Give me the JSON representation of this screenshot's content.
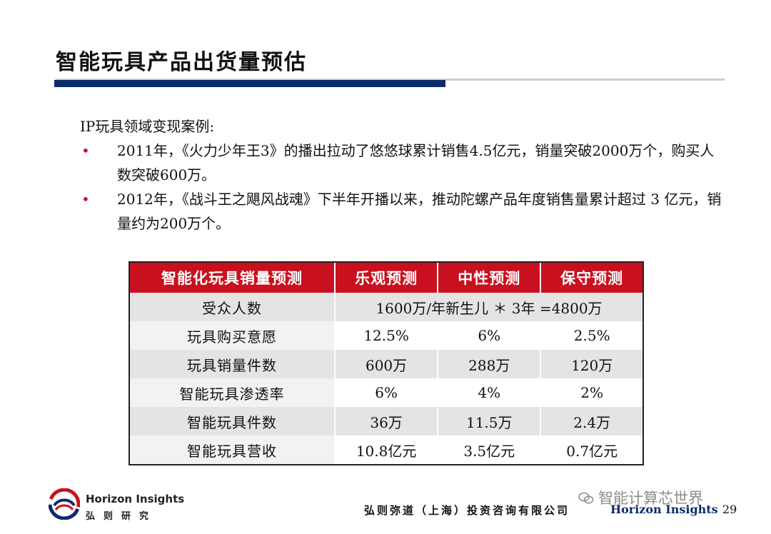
{
  "title": "智能玩具产品出货量预估",
  "intro": "IP玩具领域变现案例:",
  "bullets": [
    {
      "marker": "•",
      "text": "2011年，《火力少年王3》的播出拉动了悠悠球累计销售4.5亿元，销量突破2000万个，购买人数突破600万。"
    },
    {
      "marker": "•",
      "text": "2012年，《战斗王之飓风战魂》下半年开播以来，推动陀螺产品年度销售量累计超过 3 亿元，销量约为200万个。"
    }
  ],
  "table": {
    "headers": [
      "智能化玩具销量预测",
      "乐观预测",
      "中性预测",
      "保守预测"
    ],
    "audience_row": {
      "label": "受众人数",
      "value": "1600万/年新生儿 ＊ 3年 =4800万"
    },
    "rows": [
      {
        "label": "玩具购买意愿",
        "values": [
          "12.5%",
          "6%",
          "2.5%"
        ]
      },
      {
        "label": "玩具销量件数",
        "values": [
          "600万",
          "288万",
          "120万"
        ]
      },
      {
        "label": "智能玩具渗透率",
        "values": [
          "6%",
          "4%",
          "2%"
        ]
      },
      {
        "label": "智能玩具件数",
        "values": [
          "36万",
          "11.5万",
          "2.4万"
        ]
      },
      {
        "label": "智能玩具营收",
        "values": [
          "10.8亿元",
          "3.5亿元",
          "0.7亿元"
        ]
      }
    ]
  },
  "footer": {
    "brand_en": "Horizon Insights",
    "brand_cn": "弘则研究",
    "company": "弘则弥道（上海）投资咨询有限公司 ",
    "brand_en_right": "Horizon Insights",
    "page_number": "29",
    "watermark": "智能计算芯世界"
  },
  "colors": {
    "header_red": "#c8101e",
    "rule_navy": "#0d2b6b",
    "bullet_red": "#c0182a",
    "row_shade": "#e4e4e4"
  },
  "icons": [
    "horizon-logo-icon",
    "wechat-icon"
  ]
}
